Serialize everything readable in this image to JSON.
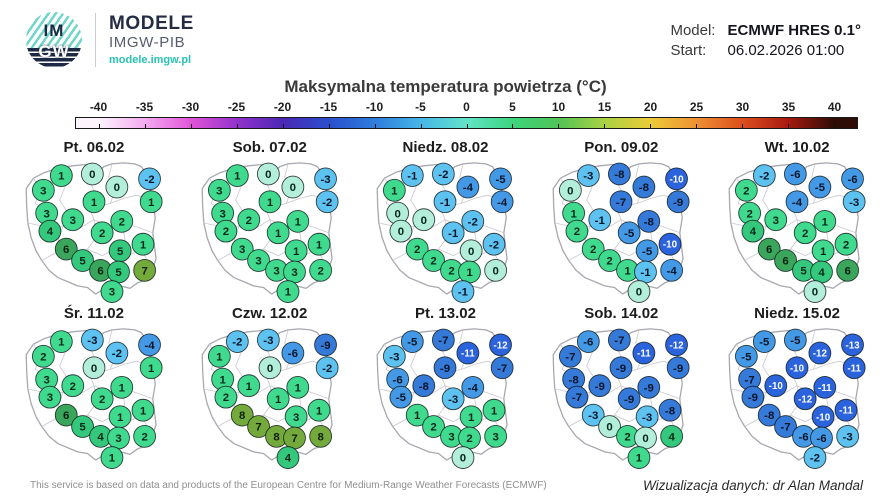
{
  "header": {
    "logo": {
      "line1": "IM",
      "line2": "GW",
      "brand": "MODELE",
      "brand_sub": "IMGW-PIB",
      "brand_url": "modele.imgw.pl"
    },
    "model_label": "Model:",
    "model_value": "ECMWF HRES 0.1°",
    "start_label": "Start:",
    "start_value": "06.02.2026 01:00"
  },
  "title": "Maksymalna temperatura powietrza (°C)",
  "colorbar": {
    "tick_labels": [
      "-40",
      "-35",
      "-30",
      "-25",
      "-20",
      "-15",
      "-10",
      "-5",
      "0",
      "5",
      "10",
      "15",
      "20",
      "25",
      "30",
      "35",
      "40"
    ],
    "gradient_stops": [
      "#fdf3fc",
      "#f3aaef",
      "#e055d8",
      "#9232cc",
      "#4b28b4",
      "#2b4ece",
      "#2e7ddc",
      "#46b5e8",
      "#62e3c8",
      "#3cd57e",
      "#52c357",
      "#a8d243",
      "#ebcb38",
      "#ee9234",
      "#dd4f1d",
      "#a81a10",
      "#2e0d06"
    ]
  },
  "chart_data": {
    "type": "heatmap",
    "title": "Maksymalna temperatura powietrza (°C)",
    "legend_range": [
      -40,
      40
    ],
    "legend_step": 5,
    "maps": [
      {
        "title": "Pt. 06.02",
        "values": [
          1,
          0,
          -2,
          3,
          0,
          1,
          1,
          3,
          3,
          2,
          2,
          4,
          6,
          5,
          5,
          1,
          6,
          5,
          7,
          3
        ]
      },
      {
        "title": "Sob. 07.02",
        "values": [
          1,
          0,
          -3,
          3,
          0,
          1,
          -2,
          3,
          2,
          1,
          1,
          2,
          3,
          3,
          1,
          1,
          3,
          3,
          2,
          1
        ]
      },
      {
        "title": "Niedz. 08.02",
        "values": [
          -1,
          -2,
          -5,
          1,
          -4,
          -1,
          -4,
          0,
          0,
          -2,
          -1,
          0,
          2,
          2,
          0,
          -2,
          2,
          1,
          0,
          -1
        ]
      },
      {
        "title": "Pon. 09.02",
        "values": [
          -3,
          -8,
          -10,
          0,
          -8,
          -7,
          -9,
          1,
          -1,
          -8,
          -5,
          2,
          2,
          2,
          -5,
          -10,
          1,
          -1,
          -4,
          0
        ]
      },
      {
        "title": "Wt. 10.02",
        "values": [
          -2,
          -6,
          -6,
          2,
          -5,
          -4,
          -3,
          2,
          3,
          1,
          2,
          4,
          6,
          6,
          1,
          2,
          5,
          4,
          6,
          0
        ]
      },
      {
        "title": "Śr. 11.02",
        "values": [
          1,
          -3,
          -4,
          2,
          -2,
          0,
          1,
          3,
          2,
          1,
          2,
          3,
          6,
          5,
          1,
          1,
          4,
          3,
          2,
          1
        ]
      },
      {
        "title": "Czw. 12.02",
        "values": [
          -2,
          -3,
          -9,
          1,
          -6,
          0,
          -2,
          1,
          1,
          1,
          1,
          2,
          8,
          7,
          3,
          1,
          8,
          7,
          8,
          4
        ]
      },
      {
        "title": "Pt. 13.02",
        "values": [
          -5,
          -7,
          -12,
          -3,
          -11,
          -9,
          -7,
          -6,
          -8,
          -4,
          -3,
          -5,
          1,
          2,
          1,
          1,
          3,
          2,
          3,
          0
        ]
      },
      {
        "title": "Sob. 14.02",
        "values": [
          -6,
          -7,
          -12,
          -7,
          -11,
          -9,
          -9,
          -8,
          -9,
          -9,
          -9,
          -7,
          -3,
          0,
          -3,
          -8,
          2,
          0,
          4,
          1
        ]
      },
      {
        "title": "Niedz. 15.02",
        "values": [
          -5,
          -5,
          -13,
          -5,
          -12,
          -10,
          -11,
          -7,
          -10,
          -11,
          -12,
          -9,
          -8,
          -7,
          -10,
          -11,
          -6,
          -6,
          -3,
          -2
        ]
      }
    ],
    "map_points": [
      {
        "x": 30,
        "y": 12
      },
      {
        "x": 49,
        "y": 11
      },
      {
        "x": 84,
        "y": 14
      },
      {
        "x": 19,
        "y": 21
      },
      {
        "x": 64,
        "y": 19
      },
      {
        "x": 50,
        "y": 28
      },
      {
        "x": 85,
        "y": 28
      },
      {
        "x": 21,
        "y": 35
      },
      {
        "x": 37,
        "y": 39
      },
      {
        "x": 67,
        "y": 40
      },
      {
        "x": 55,
        "y": 47
      },
      {
        "x": 23,
        "y": 46
      },
      {
        "x": 33,
        "y": 57
      },
      {
        "x": 43,
        "y": 64
      },
      {
        "x": 66,
        "y": 58
      },
      {
        "x": 80,
        "y": 54
      },
      {
        "x": 54,
        "y": 70
      },
      {
        "x": 65,
        "y": 71
      },
      {
        "x": 81,
        "y": 70
      },
      {
        "x": 61,
        "y": 83
      }
    ],
    "value_colors": [
      {
        "min": -99,
        "max": -10,
        "bg": "#2b63dd",
        "text": "#ffffff"
      },
      {
        "min": -9,
        "max": -7,
        "bg": "#3579d9",
        "text": "#0a1526"
      },
      {
        "min": -6,
        "max": -4,
        "bg": "#4499e6",
        "text": "#0a1526"
      },
      {
        "min": -3,
        "max": -1,
        "bg": "#5ec2f1",
        "text": "#0a1526"
      },
      {
        "min": 0,
        "max": 0,
        "bg": "#b2eeda",
        "text": "#07281a"
      },
      {
        "min": 1,
        "max": 3,
        "bg": "#40da8e",
        "text": "#07281a"
      },
      {
        "min": 4,
        "max": 5,
        "bg": "#33c87b",
        "text": "#07281a"
      },
      {
        "min": 6,
        "max": 6,
        "bg": "#3aa65c",
        "text": "#062112"
      },
      {
        "min": 7,
        "max": 99,
        "bg": "#74aa3c",
        "text": "#111f07"
      }
    ]
  },
  "footer": {
    "left": "This service is based on data and products of the European Centre for Medium-Range Weather Forecasts (ECMWF)",
    "right": "Wizualizacja danych: dr Alan Mandal"
  }
}
